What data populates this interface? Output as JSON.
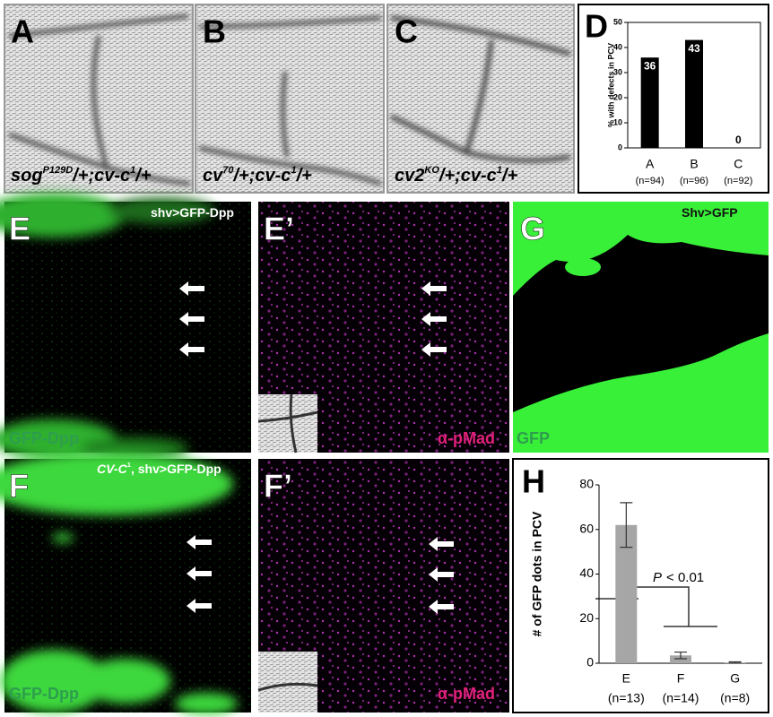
{
  "panels": [
    {
      "label": "A",
      "caption": [
        "sog",
        "P129D",
        "/+;cv-c",
        "1",
        "/+"
      ]
    },
    {
      "label": "B",
      "caption": [
        "cv",
        "70",
        "/+;cv-c",
        "1",
        "/+"
      ]
    },
    {
      "label": "C",
      "caption": [
        "cv2",
        "KO",
        "/+;cv-c",
        "1",
        "/+"
      ]
    },
    {
      "label": "D"
    },
    {
      "label": "E",
      "caption": [
        "shv>GFP-Dpp"
      ],
      "channel": "GFP-Dpp"
    },
    {
      "label": "E’",
      "channel": "α-pMad"
    },
    {
      "label": "G",
      "caption": [
        "Shv>GFP"
      ],
      "channel": "GFP"
    },
    {
      "label": "F",
      "caption": [
        "CV-C",
        "1",
        ", shv>GFP-Dpp"
      ],
      "channel": "GFP-Dpp"
    },
    {
      "label": "F’",
      "channel": "α-pMad"
    },
    {
      "label": "H"
    }
  ],
  "chart_data": [
    {
      "type": "bar",
      "ylabel": "% with defects in PCV",
      "categories": [
        "A",
        "B",
        "C"
      ],
      "category_sublabels": [
        "(n=94)",
        "(n=96)",
        "(n=92)"
      ],
      "values": [
        36,
        43,
        0
      ],
      "color": "#000000",
      "ylim": [
        0,
        50
      ],
      "yticks": [
        0,
        10,
        20,
        30,
        40,
        50
      ]
    },
    {
      "type": "bar",
      "ylabel": "# of GFP dots in PCV",
      "categories": [
        "E",
        "F",
        "G"
      ],
      "category_sublabels": [
        "(n=13)",
        "(n=14)",
        "(n=8)"
      ],
      "values": [
        62,
        3.5,
        0.3
      ],
      "errors": [
        10,
        1.5,
        0.3
      ],
      "color": "#a6a6a6",
      "ylim": [
        0,
        80
      ],
      "yticks": [
        0,
        20,
        40,
        60,
        80
      ],
      "annotation": [
        "P",
        "< 0.01"
      ]
    }
  ]
}
